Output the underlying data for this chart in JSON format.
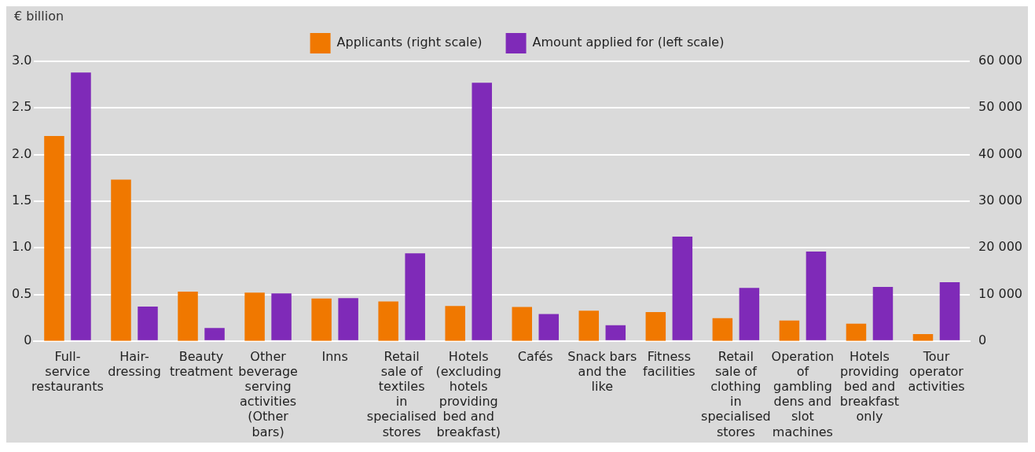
{
  "chart_data": {
    "type": "bar",
    "ylabel": "€ billion",
    "categories": [
      "Full-service restaurants",
      "Hair-dressing",
      "Beauty treatment",
      "Other beverage serving activities (Other bars)",
      "Inns",
      "Retail sale of textiles in specialised stores",
      "Hotels (excluding hotels providing bed and breakfast)",
      "Cafés",
      "Snack bars and the like",
      "Fitness facilities",
      "Retail sale of clothing in specialised stores",
      "Operation of gambling dens and slot machines",
      "Hotels providing bed and breakfast only",
      "Tour operator activities"
    ],
    "series": [
      {
        "name": "Applicants (right scale)",
        "color": "#f07800",
        "axis": "y2",
        "values": [
          44000,
          34600,
          10600,
          10400,
          9100,
          8500,
          7500,
          7300,
          6500,
          6200,
          4900,
          4400,
          3700,
          1500
        ]
      },
      {
        "name": "Amount applied for (left scale)",
        "color": "#7f2ab8",
        "values": [
          2.88,
          0.37,
          0.14,
          0.51,
          0.46,
          0.94,
          2.77,
          0.29,
          0.17,
          1.12,
          0.57,
          0.96,
          0.58,
          0.63
        ]
      }
    ],
    "ylim": [
      0,
      3
    ],
    "yticks": [
      {
        "value": 0,
        "label": "0"
      },
      {
        "value": 0.5,
        "label": "0.5"
      },
      {
        "value": 1,
        "label": "1.0"
      },
      {
        "value": 1.5,
        "label": "1.5"
      },
      {
        "value": 2,
        "label": "2.0"
      },
      {
        "value": 2.5,
        "label": "2.5"
      },
      {
        "value": 3,
        "label": "3.0"
      }
    ],
    "y2lim": [
      0,
      60000
    ],
    "y2ticks": [
      {
        "value": 0,
        "label": "0"
      },
      {
        "value": 10000,
        "label": "10 000"
      },
      {
        "value": 20000,
        "label": "20 000"
      },
      {
        "value": 30000,
        "label": "30 000"
      },
      {
        "value": 40000,
        "label": "40 000"
      },
      {
        "value": 50000,
        "label": "50 000"
      },
      {
        "value": 60000,
        "label": "60 000"
      }
    ],
    "grid": "y",
    "legend": "top"
  }
}
